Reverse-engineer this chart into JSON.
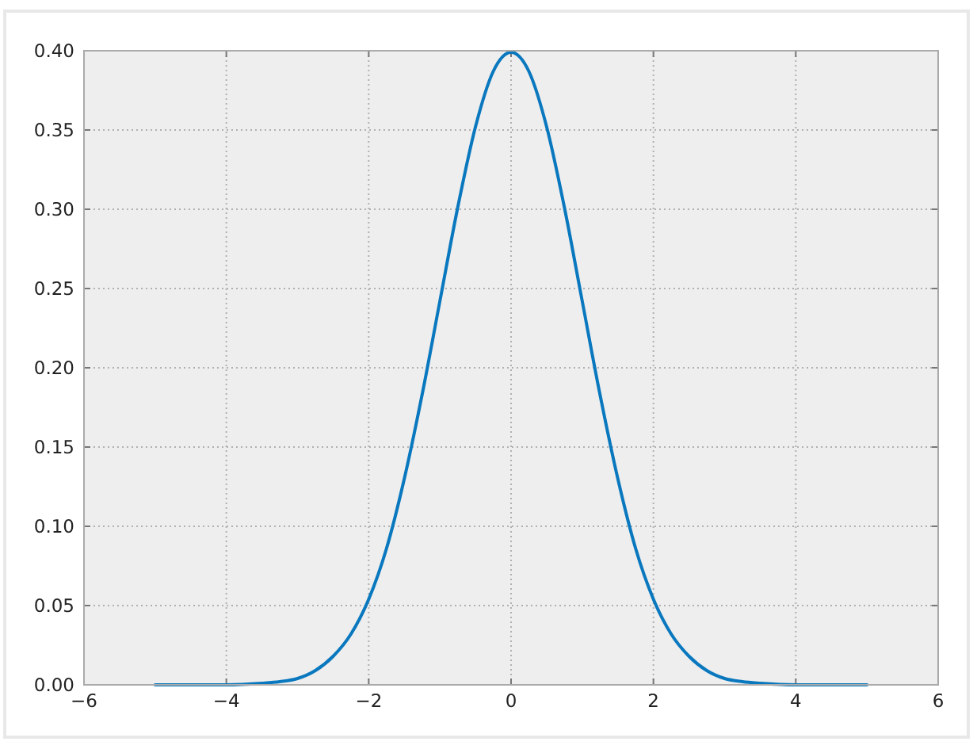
{
  "chart_data": {
    "type": "line",
    "x": [
      -5,
      -4.5,
      -4,
      -3.5,
      -3.25,
      -3,
      -2.75,
      -2.5,
      -2.25,
      -2,
      -1.75,
      -1.5,
      -1.25,
      -1,
      -0.75,
      -0.5,
      -0.25,
      0,
      0.25,
      0.5,
      0.75,
      1,
      1.25,
      1.5,
      1.75,
      2,
      2.25,
      2.5,
      2.75,
      3,
      3.25,
      3.5,
      4,
      4.5,
      5
    ],
    "series": [
      {
        "color": "#0a78be",
        "values": [
          0,
          0,
          0,
          0.001,
          0.002,
          0.004,
          0.009,
          0.018,
          0.032,
          0.054,
          0.086,
          0.13,
          0.183,
          0.242,
          0.301,
          0.352,
          0.387,
          0.399,
          0.387,
          0.352,
          0.301,
          0.242,
          0.183,
          0.13,
          0.086,
          0.054,
          0.032,
          0.018,
          0.009,
          0.004,
          0.002,
          0.001,
          0,
          0,
          0
        ]
      }
    ],
    "xlim": [
      -6,
      6
    ],
    "xticks": [
      {
        "value": -6,
        "label": "−6"
      },
      {
        "value": -4,
        "label": "−4"
      },
      {
        "value": -2,
        "label": "−2"
      },
      0,
      2,
      4,
      6
    ],
    "ylim": [
      0,
      0.4
    ],
    "yticks": [
      {
        "value": 0,
        "label": "0.00"
      },
      {
        "value": 0.05,
        "label": "0.05"
      },
      {
        "value": 0.1,
        "label": "0.10"
      },
      {
        "value": 0.15,
        "label": "0.15"
      },
      {
        "value": 0.2,
        "label": "0.20"
      },
      {
        "value": 0.25,
        "label": "0.25"
      },
      {
        "value": 0.3,
        "label": "0.30"
      },
      {
        "value": 0.35,
        "label": "0.35"
      },
      {
        "value": 0.4,
        "label": "0.40"
      }
    ],
    "grid": true,
    "line_style": "solid"
  }
}
